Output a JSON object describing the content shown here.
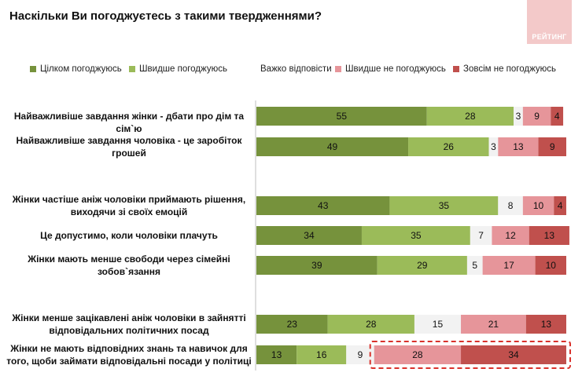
{
  "title": "Наскільки Ви погоджуєтесь з такими твердженнями?",
  "logo_text": "РЕЙТИНГ",
  "colors": {
    "fully_agree": "#76923c",
    "rather_agree": "#9bbb59",
    "hard_to_say": "#f2f2f2",
    "rather_disagree": "#e6959a",
    "fully_disagree": "#c0504d",
    "highlight_border": "#d9312b"
  },
  "chart_data": {
    "type": "bar",
    "orientation": "horizontal",
    "stacked": true,
    "xlim": [
      0,
      100
    ],
    "legend_position": "top",
    "grid": false,
    "categories": [
      "Найважливіше завдання жінки - дбати про дім та сім`ю",
      "Найважливіше завдання чоловіка - це заробіток грошей",
      "Жінки частіше аніж чоловіки приймають рішення, виходячи зі своїх емоцій",
      "Це допустимо, коли чоловіки плачуть",
      "Жінки мають менше свободи через сімейні зобов`язання",
      "Жінки менше зацікавлені аніж чоловіки в зайнятті відповідальних політичних посад",
      "Жінки не мають відповідних знань та навичок для того, щоби займати відповідальні посади у політиці"
    ],
    "series": [
      {
        "name": "Цілком погоджуюсь",
        "values": [
          55,
          49,
          43,
          34,
          39,
          23,
          13
        ]
      },
      {
        "name": "Швидше погоджуюсь",
        "values": [
          28,
          26,
          35,
          35,
          29,
          28,
          16
        ]
      },
      {
        "name": "Важко відповісти",
        "values": [
          3,
          3,
          8,
          7,
          5,
          15,
          9
        ]
      },
      {
        "name": "Швидше не погоджуюсь",
        "values": [
          9,
          13,
          10,
          12,
          17,
          21,
          28
        ]
      },
      {
        "name": "Зовсім не погоджуюсь",
        "values": [
          4,
          9,
          4,
          13,
          10,
          13,
          34
        ]
      }
    ],
    "highlight": {
      "category_index": 6,
      "series_from": 3,
      "series_to": 4
    }
  }
}
